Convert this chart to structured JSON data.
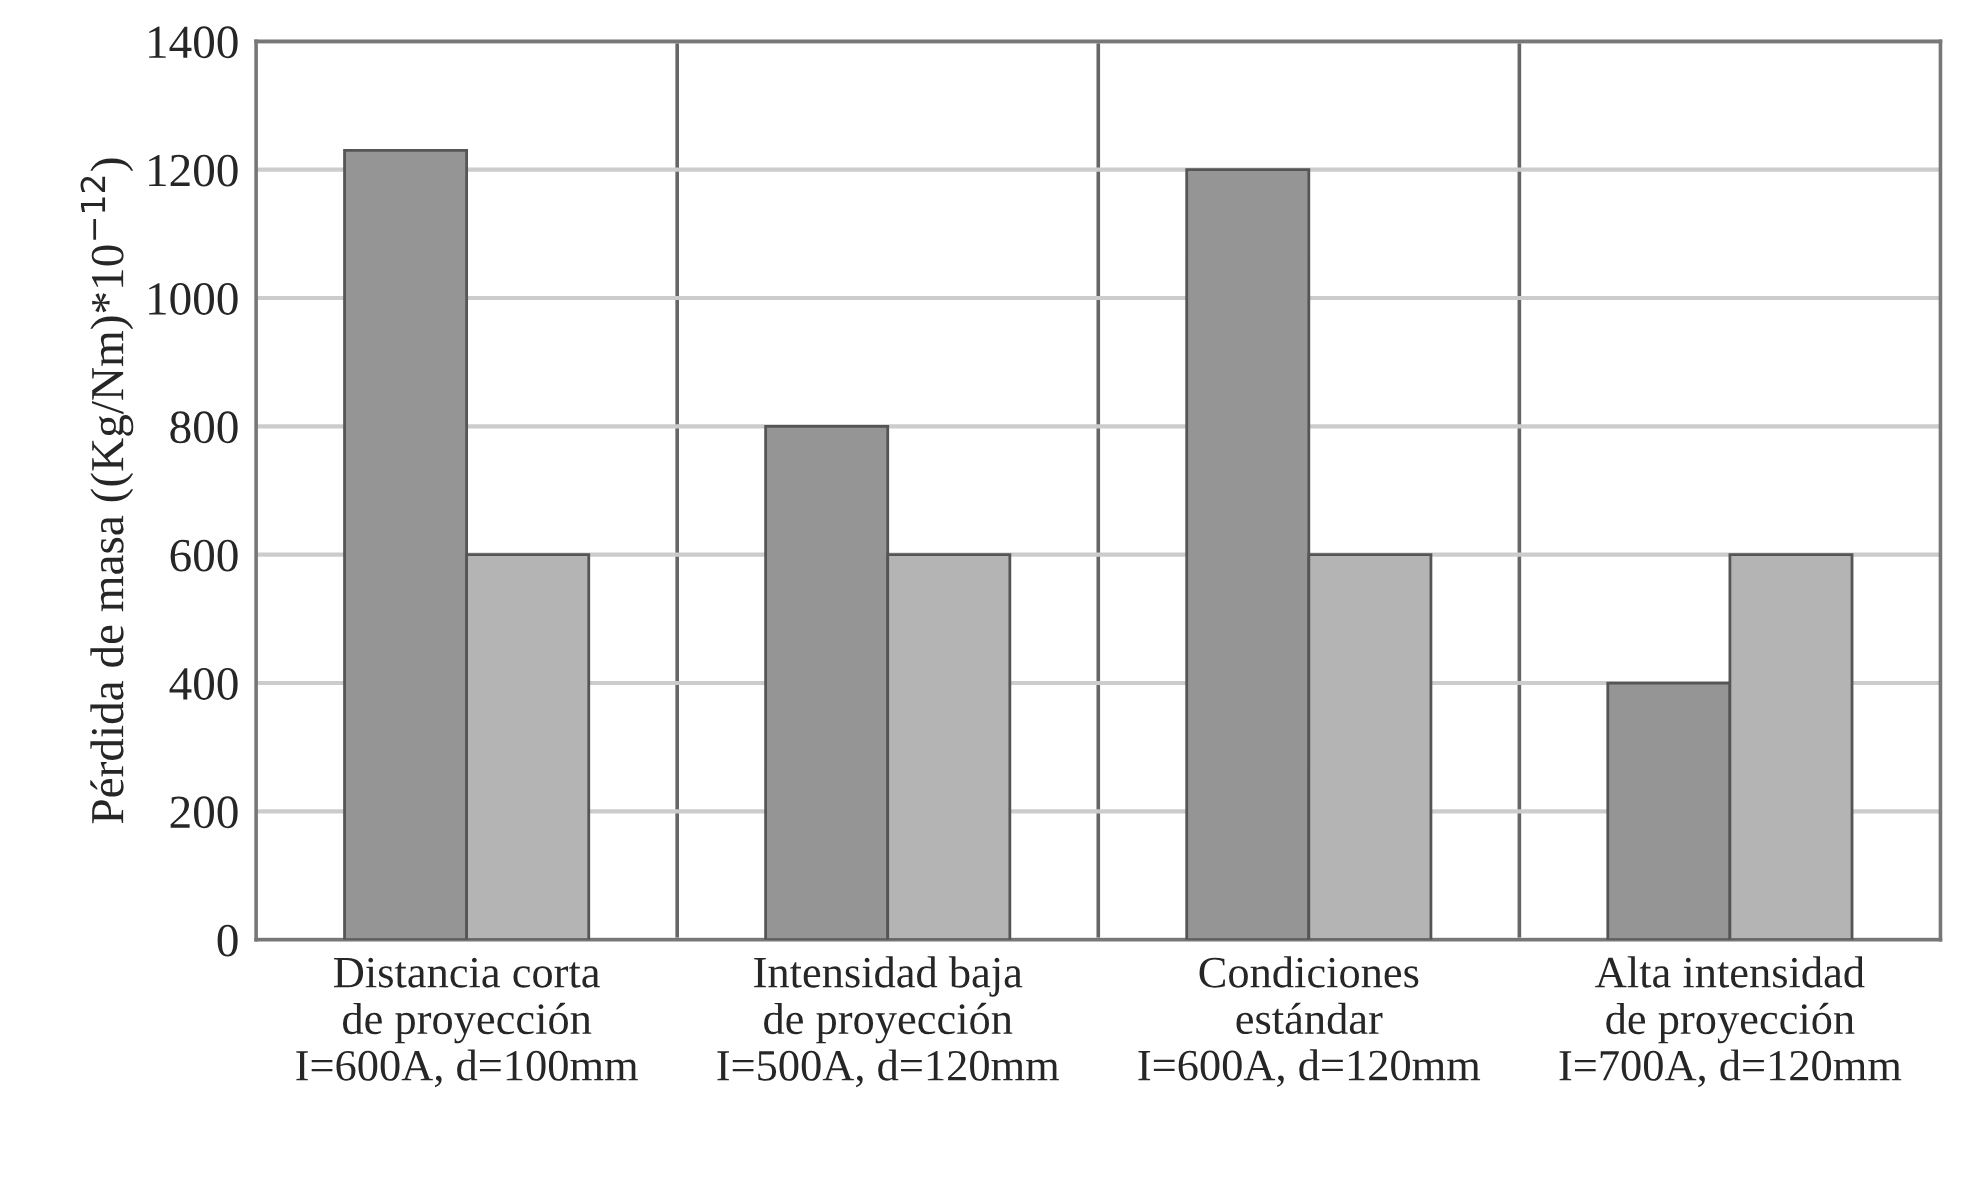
{
  "chart_data": {
    "type": "bar",
    "ylabel": "Pérdida de masa ((Kg/Nm)*10$^{−12}$)",
    "categories": [
      "Distancia corta\nde proyección\nI=600A, d=100mm",
      "Intensidad baja\nde proyección\nI=500A, d=120mm",
      "Condiciones\nestándar\nI=600A, d=120mm",
      "Alta intensidad\nde proyección\nI=700A, d=120mm"
    ],
    "series": [
      {
        "color": "#959595",
        "values": [
          1230,
          800,
          1200,
          400
        ]
      },
      {
        "color": "#b4b4b4",
        "values": [
          600,
          600,
          600,
          600
        ]
      }
    ],
    "ylim": [
      0,
      1400
    ],
    "yticks": [
      0,
      200,
      400,
      600,
      800,
      1000,
      1200,
      1400
    ],
    "grid": true,
    "legend": false
  }
}
